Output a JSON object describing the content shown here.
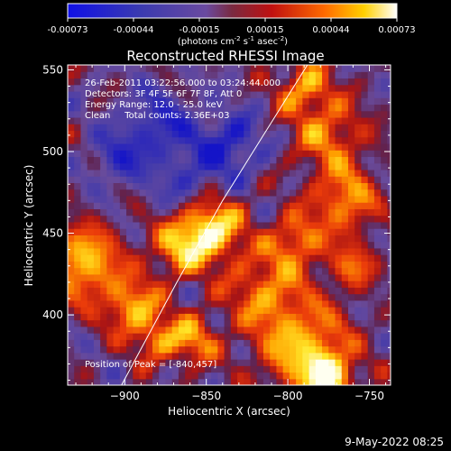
{
  "chart_data": {
    "type": "heatmap",
    "title": "Reconstructed RHESSI Image",
    "xlabel": "Heliocentric X (arcsec)",
    "ylabel": "Heliocentric Y (arcsec)",
    "xlim": [
      -935,
      -737
    ],
    "ylim": [
      357,
      553
    ],
    "xticks": [
      -900,
      -850,
      -800,
      -750
    ],
    "yticks": [
      400,
      450,
      500,
      550
    ],
    "colorbar": {
      "ticks": [
        "-0.00073",
        "-0.00044",
        "-0.00015",
        "0.00015",
        "0.00044",
        "0.00073"
      ],
      "range": [
        -0.00073,
        0.00073
      ],
      "label_base": "(photons cm",
      "label_exp1": "-2",
      "label_mid": " s",
      "label_exp2": "-1",
      "label_mid2": " asec",
      "label_exp3": "-2",
      "label_end": ")"
    },
    "annotations": [
      "26-Feb-2011 03:22:56.000 to 03:24:44.000",
      "Detectors: 3F 4F 5F 6F 7F 8F, Att 0",
      "Energy Range: 12.0 - 25.0 keV",
      "Clean     Total counts: 2.36E+03"
    ],
    "peak_label": "Position of Peak = [-840,457]",
    "peak": [
      -840,
      457
    ],
    "limb_line": [
      [
        -902,
        357
      ],
      [
        -868,
        420
      ],
      [
        -840,
        470
      ],
      [
        -815,
        510
      ],
      [
        -788,
        553
      ]
    ],
    "hotspots": [
      {
        "x": -848,
        "y": 453,
        "sigma": 14,
        "amp": 1.0
      },
      {
        "x": -868,
        "y": 440,
        "sigma": 12,
        "amp": 0.55
      },
      {
        "x": -925,
        "y": 432,
        "sigma": 16,
        "amp": 0.8
      },
      {
        "x": -895,
        "y": 405,
        "sigma": 12,
        "amp": 0.7
      },
      {
        "x": -880,
        "y": 385,
        "sigma": 10,
        "amp": 0.5
      },
      {
        "x": -858,
        "y": 385,
        "sigma": 11,
        "amp": 0.6
      },
      {
        "x": -790,
        "y": 380,
        "sigma": 20,
        "amp": 0.75
      },
      {
        "x": -775,
        "y": 362,
        "sigma": 10,
        "amp": 0.8
      },
      {
        "x": -815,
        "y": 415,
        "sigma": 16,
        "amp": 0.55
      },
      {
        "x": -795,
        "y": 445,
        "sigma": 12,
        "amp": 0.6
      },
      {
        "x": -765,
        "y": 470,
        "sigma": 14,
        "amp": 0.65
      },
      {
        "x": -775,
        "y": 510,
        "sigma": 16,
        "amp": 0.55
      },
      {
        "x": -790,
        "y": 540,
        "sigma": 12,
        "amp": 0.6
      },
      {
        "x": -760,
        "y": 430,
        "sigma": 10,
        "amp": 0.5
      }
    ],
    "coldspots": [
      {
        "x": -880,
        "y": 515,
        "sigma": 16,
        "amp": -0.45
      },
      {
        "x": -835,
        "y": 505,
        "sigma": 14,
        "amp": -0.5
      },
      {
        "x": -905,
        "y": 495,
        "sigma": 12,
        "amp": -0.35
      },
      {
        "x": -860,
        "y": 480,
        "sigma": 14,
        "amp": -0.35
      }
    ]
  },
  "footer": {
    "date": "9-May-2022 08:25"
  }
}
